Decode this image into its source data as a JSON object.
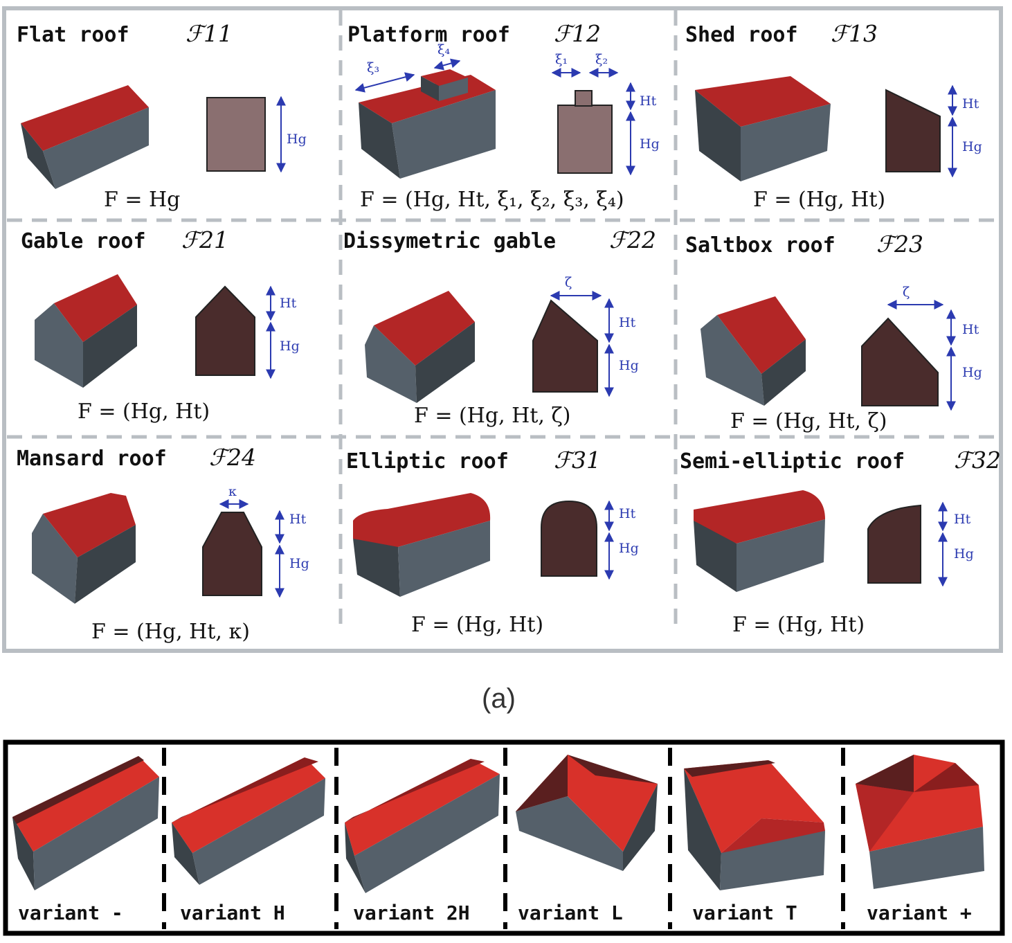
{
  "colors": {
    "roof": "#b32626",
    "roof_light": "#d8312a",
    "wall": "#55606a",
    "wall_dark": "#3a4248",
    "profile_flat": "#8a6f70",
    "profile_dark": "#4a2c2c",
    "dimension": "#2b3ab0"
  },
  "panel_a": {
    "label": "(a)",
    "cells": [
      {
        "title": "Flat roof",
        "code": "ℱ11",
        "formula": "F =  Hg",
        "dims": [
          "Hg"
        ]
      },
      {
        "title": "Platform roof",
        "code": "ℱ12",
        "formula": "F = (Hg, Ht, ξ₁, ξ₂, ξ₃, ξ₄)",
        "dims": [
          "Ht",
          "Hg",
          "ξ₁",
          "ξ₂",
          "ξ₃",
          "ξ₄"
        ]
      },
      {
        "title": "Shed roof",
        "code": "ℱ13",
        "formula": "F = (Hg, Ht)",
        "dims": [
          "Ht",
          "Hg"
        ]
      },
      {
        "title": "Gable roof",
        "code": "ℱ21",
        "formula": "F = (Hg, Ht)",
        "dims": [
          "Ht",
          "Hg"
        ]
      },
      {
        "title": "Dissymetric gable",
        "code": "ℱ22",
        "formula": "F = (Hg, Ht, ζ)",
        "dims": [
          "Ht",
          "Hg",
          "ζ"
        ]
      },
      {
        "title": "Saltbox roof",
        "code": "ℱ23",
        "formula": "F = (Hg, Ht, ζ)",
        "dims": [
          "Ht",
          "Hg",
          "ζ"
        ]
      },
      {
        "title": "Mansard roof",
        "code": "ℱ24",
        "formula": "F = (Hg, Ht, κ)",
        "dims": [
          "Ht",
          "Hg",
          "κ"
        ]
      },
      {
        "title": "Elliptic roof",
        "code": "ℱ31",
        "formula": "F = (Hg, Ht)",
        "dims": [
          "Ht",
          "Hg"
        ]
      },
      {
        "title": "Semi-elliptic roof",
        "code": "ℱ32",
        "formula": "F = (Hg, Ht)",
        "dims": [
          "Ht",
          "Hg"
        ]
      }
    ]
  },
  "panel_b": {
    "variants": [
      "variant -",
      "variant H",
      "variant 2H",
      "variant L",
      "variant T",
      "variant +"
    ]
  }
}
